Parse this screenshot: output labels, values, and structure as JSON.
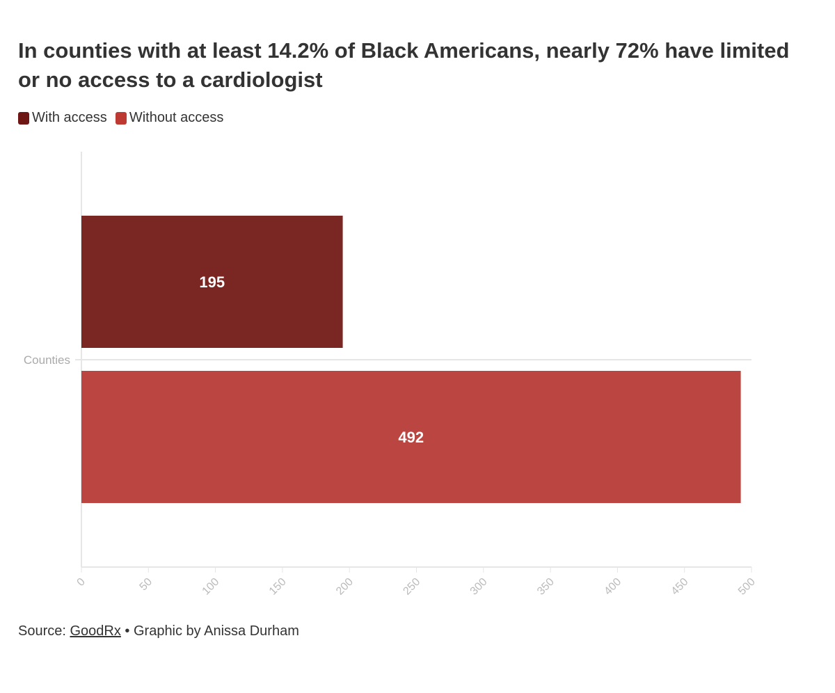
{
  "chart_data": {
    "type": "bar",
    "orientation": "horizontal",
    "title": "In counties with at least 14.2% of Black Americans, nearly 72% have limited or no access to a cardiologist",
    "categories": [
      "Counties"
    ],
    "series": [
      {
        "name": "With access",
        "values": [
          195
        ],
        "color": "#7a2723",
        "legend_color": "#6e1614"
      },
      {
        "name": "Without access",
        "values": [
          492
        ],
        "color": "#bb4641",
        "legend_color": "#bd3a33"
      }
    ],
    "xlim": [
      0,
      500
    ],
    "xticks": [
      0,
      50,
      100,
      150,
      200,
      250,
      300,
      350,
      400,
      450,
      500
    ],
    "xlabel": "",
    "ylabel": "",
    "legend": "top-left"
  },
  "footer": {
    "source_prefix": "Source: ",
    "source_link": "GoodRx",
    "credit": " • Graphic by Anissa Durham"
  }
}
